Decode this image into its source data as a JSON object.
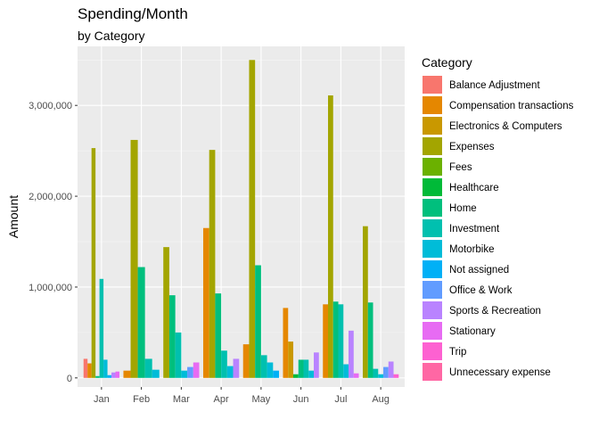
{
  "chart_data": {
    "type": "bar",
    "title": "Spending/Month",
    "subtitle": "by Category",
    "xlabel": "",
    "ylabel": "Amount",
    "ylim": [
      -100000,
      3650000
    ],
    "yticks": [
      0,
      1000000,
      2000000,
      3000000
    ],
    "ytick_labels": [
      "0",
      "1,000,000",
      "2,000,000",
      "3,000,000"
    ],
    "grid": true,
    "legend_title": "Category",
    "legend_position": "right",
    "categories": [
      "Jan",
      "Feb",
      "Mar",
      "Apr",
      "May",
      "Jun",
      "Jul",
      "Aug"
    ],
    "series": [
      {
        "name": "Balance Adjustment",
        "color": "#F8766D",
        "values": [
          210000,
          null,
          null,
          null,
          null,
          null,
          null,
          null
        ]
      },
      {
        "name": "Compensation transactions",
        "color": "#E58700",
        "values": [
          160000,
          80000,
          null,
          1650000,
          370000,
          770000,
          810000,
          null
        ]
      },
      {
        "name": "Electronics & Computers",
        "color": "#C99800",
        "values": [
          null,
          null,
          null,
          null,
          null,
          400000,
          null,
          null
        ]
      },
      {
        "name": "Expenses",
        "color": "#A3A500",
        "values": [
          2530000,
          2620000,
          1440000,
          2510000,
          3500000,
          null,
          3110000,
          1670000
        ]
      },
      {
        "name": "Fees",
        "color": "#6BB100",
        "values": [
          null,
          null,
          null,
          null,
          null,
          null,
          null,
          null
        ]
      },
      {
        "name": "Healthcare",
        "color": "#00BA38",
        "values": [
          null,
          null,
          null,
          null,
          null,
          40000,
          null,
          null
        ]
      },
      {
        "name": "Home",
        "color": "#00BF7D",
        "values": [
          20000,
          1220000,
          910000,
          930000,
          1240000,
          200000,
          840000,
          830000
        ]
      },
      {
        "name": "Investment",
        "color": "#00C0AF",
        "values": [
          1090000,
          210000,
          500000,
          300000,
          250000,
          200000,
          810000,
          100000
        ]
      },
      {
        "name": "Motorbike",
        "color": "#00BCD8",
        "values": [
          200000,
          90000,
          80000,
          130000,
          170000,
          80000,
          150000,
          40000
        ]
      },
      {
        "name": "Not assigned",
        "color": "#00B0F6",
        "values": [
          30000,
          null,
          null,
          null,
          80000,
          null,
          null,
          null
        ]
      },
      {
        "name": "Office & Work",
        "color": "#619CFF",
        "values": [
          null,
          null,
          120000,
          null,
          null,
          null,
          null,
          120000
        ]
      },
      {
        "name": "Sports & Recreation",
        "color": "#B983FF",
        "values": [
          60000,
          null,
          null,
          210000,
          null,
          280000,
          520000,
          180000
        ]
      },
      {
        "name": "Stationary",
        "color": "#E76BF3",
        "values": [
          70000,
          null,
          170000,
          null,
          null,
          null,
          50000,
          null
        ]
      },
      {
        "name": "Trip",
        "color": "#FD61D1",
        "values": [
          null,
          null,
          null,
          null,
          null,
          null,
          null,
          40000
        ]
      },
      {
        "name": "Unnecessary expense",
        "color": "#FF67A4",
        "values": [
          null,
          null,
          null,
          null,
          null,
          null,
          null,
          null
        ]
      }
    ]
  }
}
